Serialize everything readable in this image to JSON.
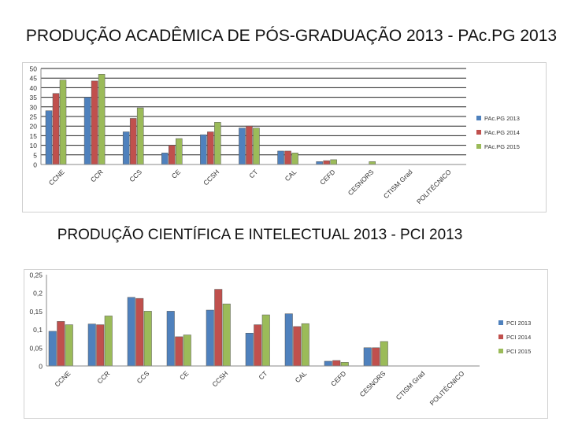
{
  "chart_data": [
    {
      "type": "bar",
      "title": "PRODUÇÃO ACADÊMICA DE PÓS-GRADUAÇÃO 2013 - PAc.PG 2013",
      "categories": [
        "CCNE",
        "CCR",
        "CCS",
        "CE",
        "CCSH",
        "CT",
        "CAL",
        "CEFD",
        "CESNORS",
        "CTISM Grad",
        "POLITÉCNICO"
      ],
      "yticks": [
        "0",
        "5",
        "10",
        "15",
        "20",
        "25",
        "30",
        "35",
        "40",
        "45",
        "50"
      ],
      "ylim": [
        0,
        50
      ],
      "grid": true,
      "legend_position": "right",
      "series": [
        {
          "name": "PAc.PG 2013",
          "color": "#4f81bd",
          "values": [
            28,
            35,
            17,
            6,
            15.5,
            19,
            7,
            1.5,
            0,
            0,
            0
          ]
        },
        {
          "name": "PAc.PG 2014",
          "color": "#c0504d",
          "values": [
            37,
            43.5,
            24,
            10,
            17,
            20,
            7,
            2,
            0,
            0,
            0
          ]
        },
        {
          "name": "PAc.PG 2015",
          "color": "#9bbb59",
          "values": [
            44,
            47,
            29.5,
            13.5,
            22,
            19,
            6,
            2.5,
            1.5,
            0,
            0
          ]
        }
      ]
    },
    {
      "type": "bar",
      "title": "PRODUÇÃO CIENTÍFICA E INTELECTUAL 2013 - PCI 2013",
      "categories": [
        "CCNE",
        "CCR",
        "CCS",
        "CE",
        "CCSH",
        "CT",
        "CAL",
        "CEFD",
        "CESNORS",
        "CTISM Grad",
        "POLITÉCNICO"
      ],
      "yticks": [
        "0",
        "0,05",
        "0,1",
        "0,15",
        "0,2",
        "0,25"
      ],
      "ylim": [
        0,
        0.25
      ],
      "grid": false,
      "legend_position": "right",
      "series": [
        {
          "name": "PCI 2013",
          "color": "#4f81bd",
          "values": [
            0.095,
            0.115,
            0.188,
            0.15,
            0.153,
            0.09,
            0.143,
            0.013,
            0.05,
            0,
            0
          ]
        },
        {
          "name": "PCI 2014",
          "color": "#c0504d",
          "values": [
            0.122,
            0.113,
            0.185,
            0.08,
            0.21,
            0.113,
            0.108,
            0.015,
            0.05,
            0,
            0
          ]
        },
        {
          "name": "PCI 2015",
          "color": "#9bbb59",
          "values": [
            0.113,
            0.137,
            0.15,
            0.085,
            0.17,
            0.14,
            0.116,
            0.01,
            0.067,
            0,
            0
          ]
        }
      ]
    }
  ]
}
